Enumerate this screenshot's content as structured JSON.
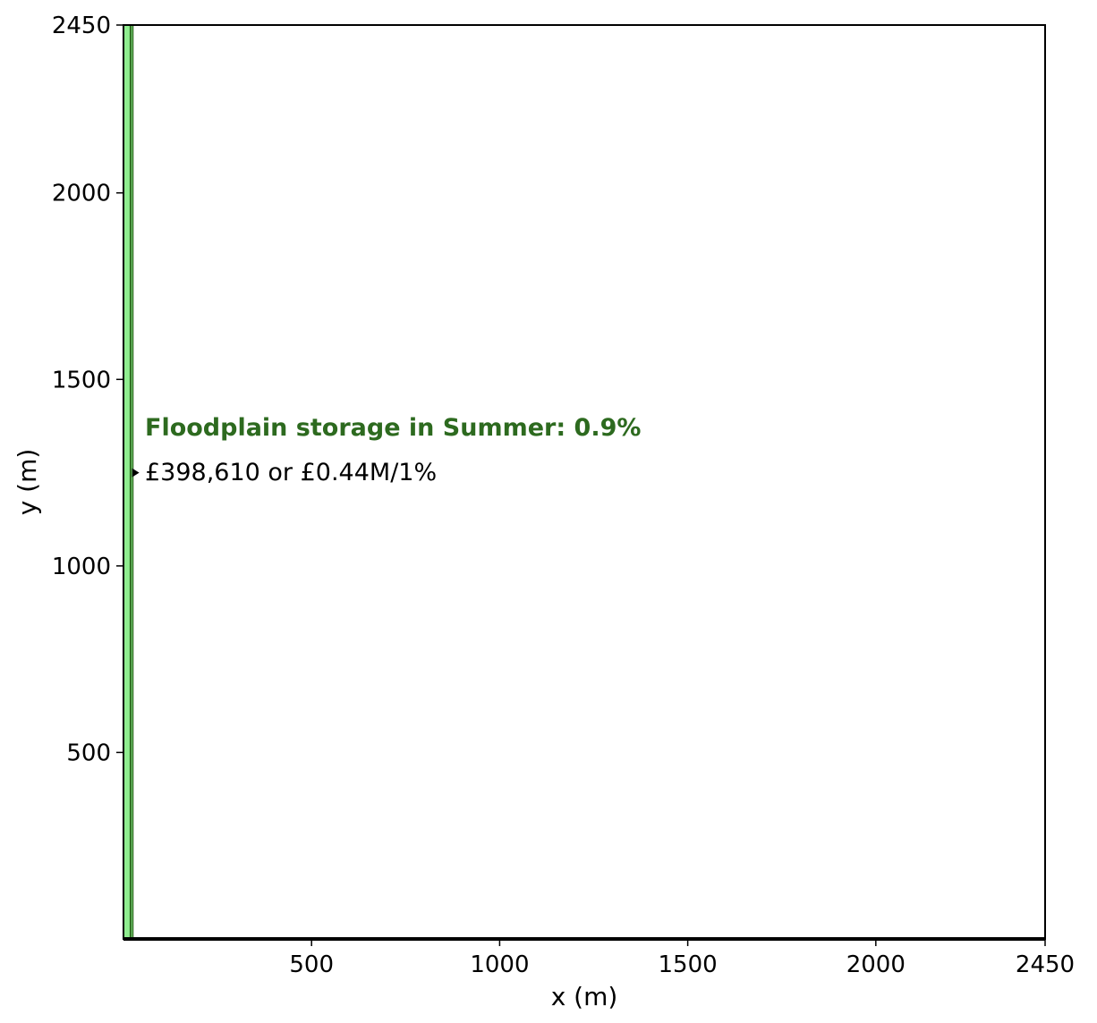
{
  "chart_data": {
    "type": "area",
    "title": "",
    "xlabel": "x (m)",
    "ylabel": "y (m)",
    "xlim": [
      0,
      2450
    ],
    "ylim": [
      0,
      2450
    ],
    "x_ticks": [
      500,
      1000,
      1500,
      2000,
      2450
    ],
    "y_ticks": [
      500,
      1000,
      1500,
      2000,
      2450
    ],
    "grid": false,
    "strip": {
      "x_start": 0,
      "x_end": 25,
      "y_start": 0,
      "y_end": 2450,
      "fill_color": "#90ee90",
      "edge_color": "#2d6a1f"
    },
    "marker_point": {
      "x": 30,
      "y": 1250
    },
    "annotation": {
      "title": "Floodplain storage in Summer: 0.9%",
      "subtitle": "£398,610 or £0.44M/1%",
      "title_color": "#2d6a1f"
    }
  }
}
